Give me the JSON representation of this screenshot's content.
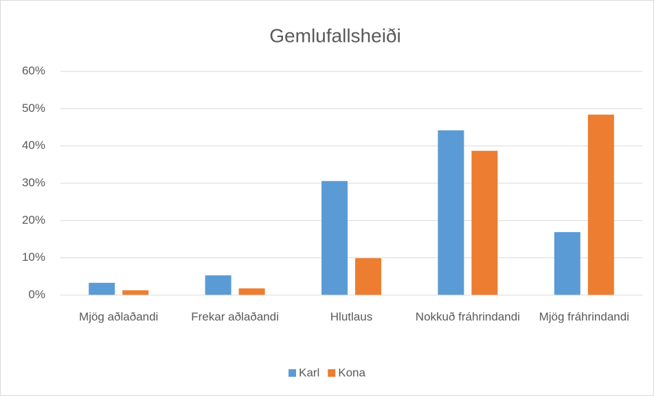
{
  "chart_data": {
    "type": "bar",
    "title": "Gemlufallsheiði",
    "categories": [
      "Mjög aðlaðandi",
      "Frekar aðlaðandi",
      "Hlutlaus",
      "Nokkuð fráhrindandi",
      "Mjög fráhrindandi"
    ],
    "series": [
      {
        "name": "Karl",
        "color": "#5b9bd5",
        "values": [
          3.3,
          5.3,
          30.6,
          44.2,
          16.9
        ]
      },
      {
        "name": "Kona",
        "color": "#ed7d31",
        "values": [
          1.3,
          1.8,
          9.9,
          38.7,
          48.4
        ]
      }
    ],
    "ylim": [
      0,
      60
    ],
    "yticks": [
      {
        "value": 0,
        "label": "0%"
      },
      {
        "value": 10,
        "label": "10%"
      },
      {
        "value": 20,
        "label": "20%"
      },
      {
        "value": 30,
        "label": "30%"
      },
      {
        "value": 40,
        "label": "40%"
      },
      {
        "value": 50,
        "label": "50%"
      },
      {
        "value": 60,
        "label": "60%"
      }
    ],
    "grid": true,
    "legend": "bottom"
  }
}
